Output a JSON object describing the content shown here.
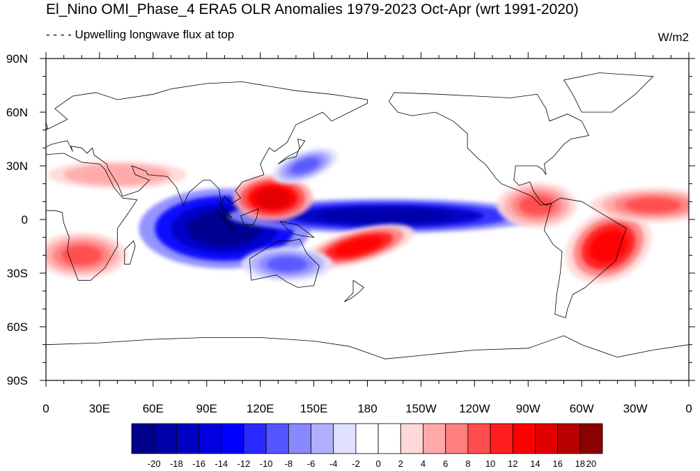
{
  "title": "El_Nino OMI_Phase_4 ERA5 OLR Anomalies 1979-2023 Oct-Apr (wrt 1991-2020)",
  "subtitle": "- - - - Upwelling longwave flux at top",
  "units": "W/m2",
  "lat_ticks": [
    "90N",
    "60N",
    "30N",
    "0",
    "30S",
    "60S",
    "90S"
  ],
  "lon_ticks": [
    "0",
    "30E",
    "60E",
    "90E",
    "120E",
    "150E",
    "180",
    "150W",
    "120W",
    "90W",
    "60W",
    "30W",
    "0"
  ],
  "colorbar": {
    "levels": [
      "-20",
      "-18",
      "-16",
      "-14",
      "-12",
      "-10",
      "-8",
      "-6",
      "-4",
      "-2",
      "0",
      "2",
      "4",
      "6",
      "8",
      "10",
      "12",
      "14",
      "16",
      "18",
      "20"
    ],
    "colors": [
      "#00008b",
      "#0000a8",
      "#0000c4",
      "#0000e0",
      "#0000ff",
      "#2a2aff",
      "#5555ff",
      "#8888ff",
      "#b0b0ff",
      "#e0e0ff",
      "#ffffff",
      "#ffffff",
      "#ffd8d8",
      "#ffaaaa",
      "#ff7f7f",
      "#ff4c4c",
      "#ff1f1f",
      "#ff0000",
      "#e00000",
      "#b80000",
      "#8b0000"
    ]
  },
  "anomaly_features": [
    {
      "name": "Maritime Continent / Indian Ocean negative",
      "lon": 100,
      "lat": -5,
      "value": -20
    },
    {
      "name": "Central Pacific equatorial negative",
      "lon": 190,
      "lat": 2,
      "value": -18
    },
    {
      "name": "Philippine Sea positive",
      "lon": 127,
      "lat": 12,
      "value": 16
    },
    {
      "name": "South Pacific positive",
      "lon": 175,
      "lat": -15,
      "value": 14
    },
    {
      "name": "Southern Africa positive",
      "lon": 20,
      "lat": -20,
      "value": 10
    },
    {
      "name": "Brazil positive",
      "lon": 315,
      "lat": -15,
      "value": 14
    },
    {
      "name": "Central America positive",
      "lon": 275,
      "lat": 8,
      "value": 10
    },
    {
      "name": "Tropical Atlantic positive",
      "lon": 340,
      "lat": 8,
      "value": 10
    },
    {
      "name": "Australia negative",
      "lon": 135,
      "lat": -25,
      "value": -8
    },
    {
      "name": "Japan negative",
      "lon": 145,
      "lat": 30,
      "value": -8
    },
    {
      "name": "Arabian Sea / Africa band positive",
      "lon": 40,
      "lat": 25,
      "value": 6
    }
  ]
}
